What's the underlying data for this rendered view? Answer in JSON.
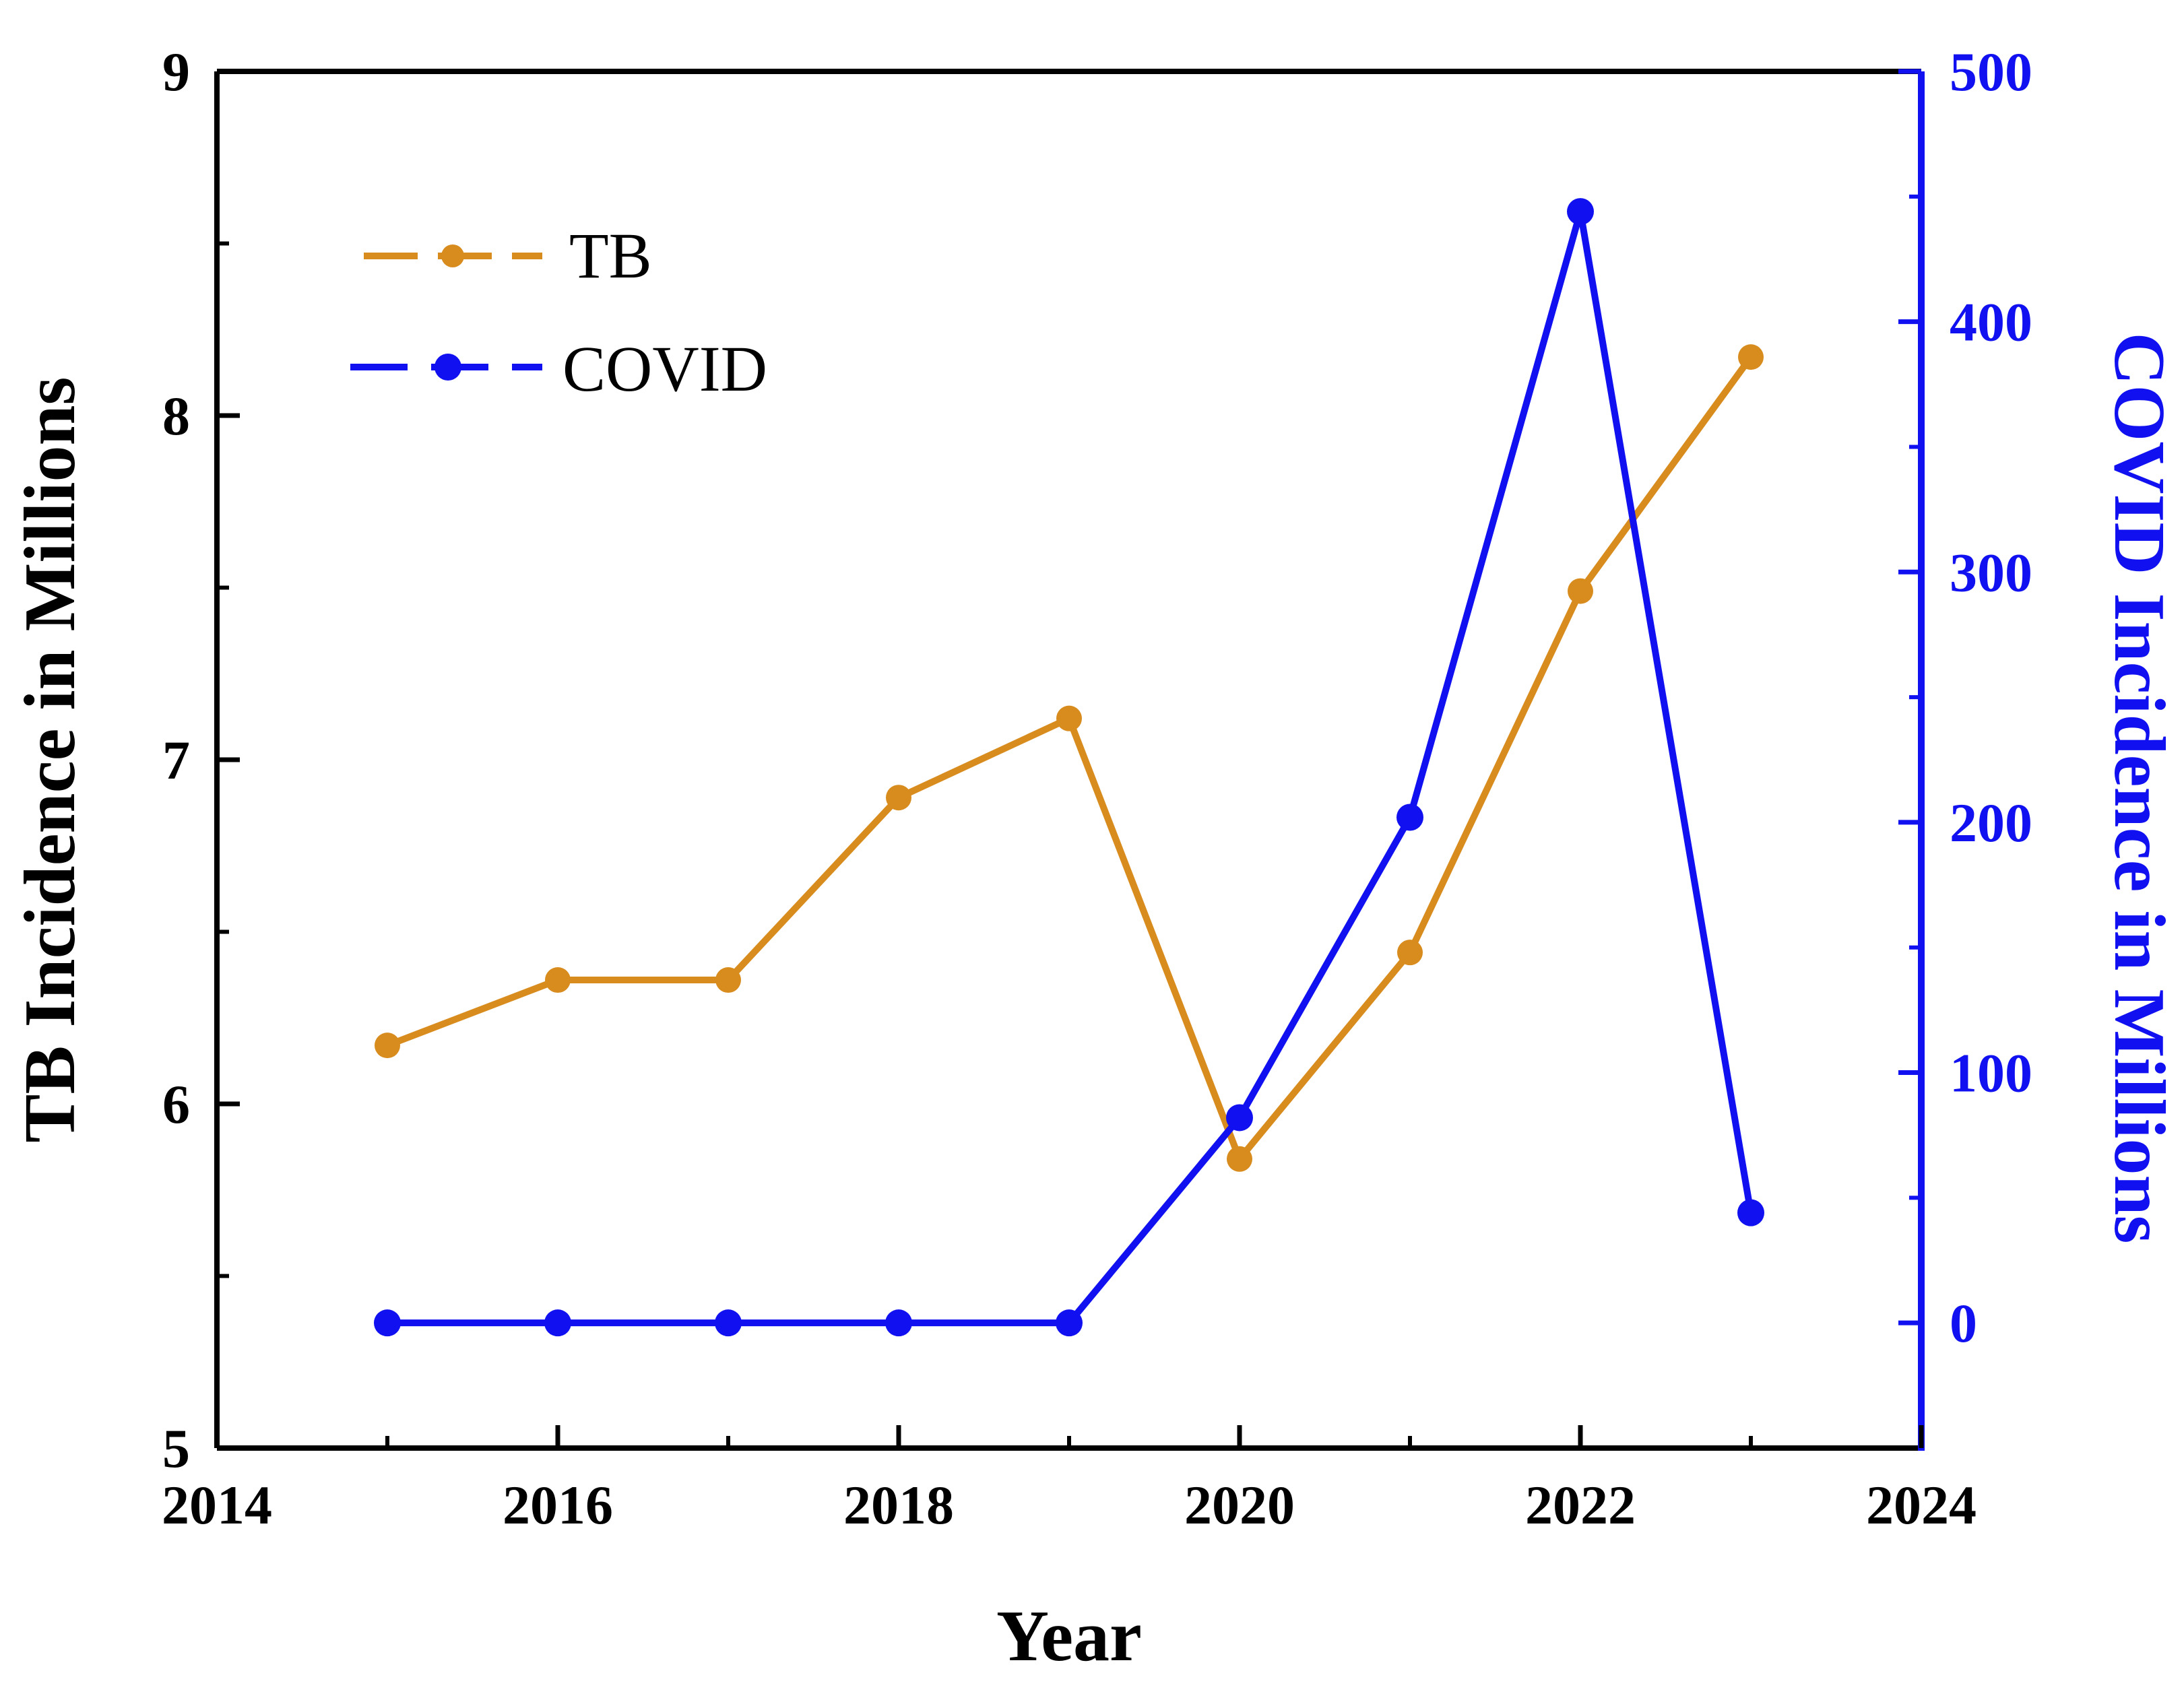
{
  "chart_data": {
    "type": "line",
    "title": "",
    "xlabel": "Year",
    "ylabel": "TB Incidence in Millions",
    "y2label": "COVID Incidence in Millions",
    "xlim": [
      2014,
      2024
    ],
    "ylim": [
      5,
      9
    ],
    "y2lim": [
      -50,
      500
    ],
    "x_ticks": [
      "2014",
      "2016",
      "2018",
      "2020",
      "2022",
      "2024"
    ],
    "y_ticks": [
      "5",
      "6",
      "7",
      "8",
      "9"
    ],
    "y2_ticks": [
      "0",
      "100",
      "200",
      "300",
      "400",
      "500"
    ],
    "x": [
      2015,
      2016,
      2017,
      2018,
      2019,
      2020,
      2021,
      2022,
      2023
    ],
    "series": [
      {
        "name": "TB",
        "axis": "left",
        "color": "#D88C1E",
        "values": [
          6.17,
          6.36,
          6.36,
          6.89,
          7.12,
          5.84,
          6.44,
          7.49,
          8.17
        ]
      },
      {
        "name": "COVID",
        "axis": "right",
        "color": "#1010F0",
        "values": [
          0,
          0,
          0,
          0,
          0,
          82,
          202,
          444,
          44
        ]
      }
    ],
    "legend_position": "top-left",
    "grid": false
  }
}
